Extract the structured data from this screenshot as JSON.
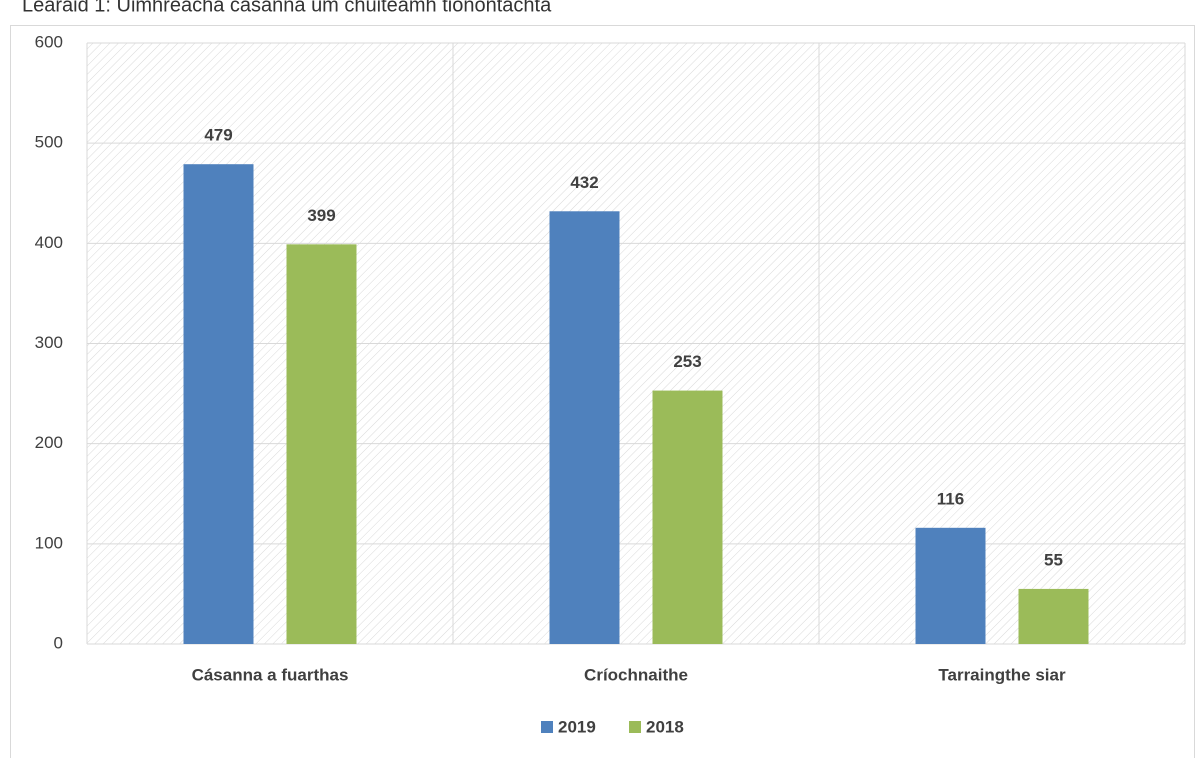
{
  "chart_data": {
    "type": "bar",
    "title": "Léaráid 1: Uimhreacha cásanna um chúiteamh tionóntachta",
    "categories": [
      "Cásanna a fuarthas",
      "Críochnaithe",
      "Tarraingthe siar"
    ],
    "series": [
      {
        "name": "2019",
        "color": "#4f81bd",
        "values": [
          479,
          432,
          116
        ]
      },
      {
        "name": "2018",
        "color": "#9bbb59",
        "values": [
          399,
          253,
          55
        ]
      }
    ],
    "ylim": [
      0,
      600
    ],
    "yticks": [
      0,
      100,
      200,
      300,
      400,
      500,
      600
    ],
    "grid": true,
    "legend": "bottom"
  }
}
